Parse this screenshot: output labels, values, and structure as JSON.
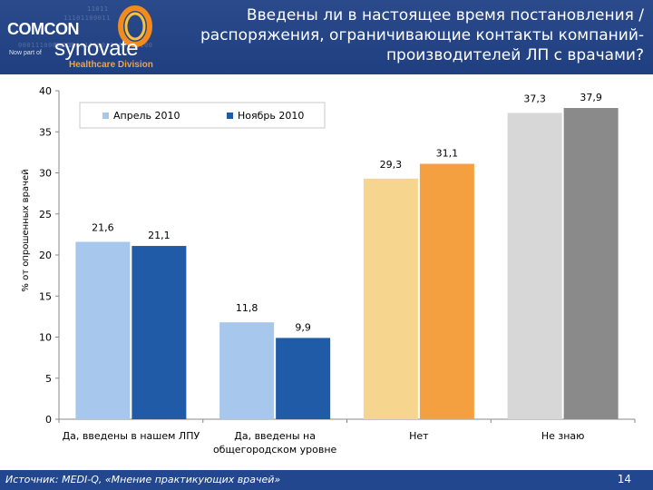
{
  "header": {
    "title": "Введены ли в настоящее время постановления / распоряжения, ограничивающие контакты компаний-производителей ЛП с врачами?",
    "logo": {
      "brand": "COMCON",
      "now_part_of": "Now part of",
      "company": "synovate",
      "division": "Healthcare Division",
      "binary_line_1": "11011",
      "binary_line_2": "11101100011",
      "binary_line_3": "01110001100011000110100",
      "binary_line_4": "0001110001110"
    }
  },
  "chart_data": {
    "type": "bar",
    "title": "Введены ли в настоящее время постановления / распоряжения, ограничивающие контакты компаний-производителей ЛП с врачами?",
    "ylabel": "% от опрошенных врачей",
    "xlabel": "",
    "ylim": [
      0,
      40
    ],
    "yticks": [
      0,
      5,
      10,
      15,
      20,
      25,
      30,
      35,
      40
    ],
    "ytick_labels": [
      "0",
      "5",
      "10",
      "15",
      "20",
      "25",
      "30",
      "35",
      "40"
    ],
    "legend_position": "top-left",
    "categories": [
      "Да, введены в нашем ЛПУ",
      "Да, введены на общегородском уровне",
      "Нет",
      "Не знаю"
    ],
    "category_label_lines": [
      [
        "Да, введены в нашем ЛПУ"
      ],
      [
        "Да, введены на",
        "общегородском уровне"
      ],
      [
        "Нет"
      ],
      [
        "Не знаю"
      ]
    ],
    "series": [
      {
        "name": "Апрель 2010",
        "values": [
          21.6,
          11.8,
          29.3,
          37.3
        ],
        "labels": [
          "21,6",
          "11,8",
          "29,3",
          "37,3"
        ],
        "colors": [
          "#a7c8ec",
          "#a7c8ec",
          "#f6d58f",
          "#d7d7d7"
        ]
      },
      {
        "name": "Ноябрь 2010",
        "values": [
          21.1,
          9.9,
          31.1,
          37.9
        ],
        "labels": [
          "21,1",
          "9,9",
          "31,1",
          "37,9"
        ],
        "colors": [
          "#1f5ba6",
          "#1f5ba6",
          "#f4a040",
          "#8a8a8a"
        ]
      }
    ],
    "legend_colors": [
      "#a7c8ec",
      "#1f5ba6"
    ]
  },
  "footer": {
    "source": "Источник: MEDI-Q, «Мнение практикующих врачей»",
    "page_number": "14"
  }
}
